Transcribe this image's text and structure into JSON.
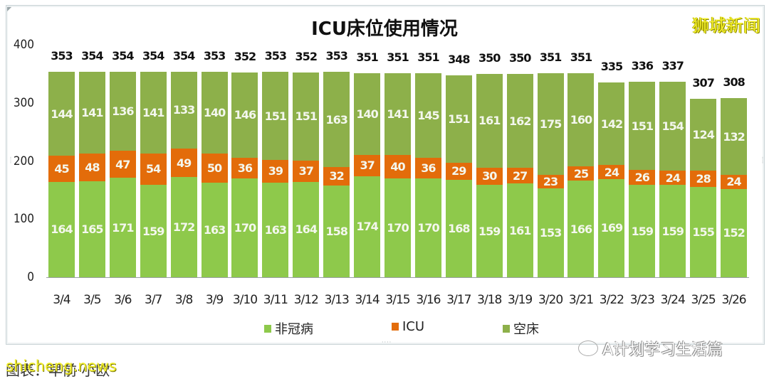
{
  "title": "ICU床位使用情况",
  "brand": "狮城新闻",
  "footer": {
    "source": "图表：早前·小欧",
    "watermark": "shicheng.news",
    "wechat_account": "A计划学习生活篇"
  },
  "legend": [
    {
      "label": "非冠病",
      "color": "#8ec94b"
    },
    {
      "label": "ICU",
      "color": "#e36c0a"
    },
    {
      "label": "空床",
      "color": "#8db04a"
    }
  ],
  "yaxis": {
    "ticks": [
      "400",
      "300",
      "200",
      "100",
      "0"
    ]
  },
  "colors": {
    "non_covid": "#8ec94b",
    "icu": "#e36c0a",
    "empty": "#8db04a"
  },
  "chart_data": {
    "type": "bar",
    "stacked": true,
    "title": "ICU床位使用情况",
    "xlabel": "",
    "ylabel": "",
    "ylim": [
      0,
      400
    ],
    "yticks": [
      0,
      100,
      200,
      300,
      400
    ],
    "grid": false,
    "legend_position": "bottom",
    "categories": [
      "3/4",
      "3/5",
      "3/6",
      "3/7",
      "3/8",
      "3/9",
      "3/10",
      "3/11",
      "3/12",
      "3/13",
      "3/14",
      "3/15",
      "3/16",
      "3/17",
      "3/18",
      "3/19",
      "3/20",
      "3/21",
      "3/22",
      "3/23",
      "3/24",
      "3/25",
      "3/26"
    ],
    "series": [
      {
        "name": "非冠病",
        "color": "#8ec94b",
        "values": [
          164,
          165,
          171,
          159,
          172,
          163,
          170,
          163,
          164,
          158,
          174,
          170,
          170,
          168,
          159,
          161,
          153,
          166,
          169,
          159,
          159,
          155,
          152
        ]
      },
      {
        "name": "ICU",
        "color": "#e36c0a",
        "values": [
          45,
          48,
          47,
          54,
          49,
          50,
          36,
          39,
          37,
          32,
          37,
          40,
          36,
          29,
          30,
          27,
          23,
          25,
          24,
          26,
          24,
          28,
          24
        ]
      },
      {
        "name": "空床",
        "color": "#8db04a",
        "values": [
          144,
          141,
          136,
          141,
          133,
          140,
          146,
          151,
          151,
          163,
          140,
          141,
          145,
          151,
          161,
          162,
          175,
          160,
          142,
          151,
          154,
          124,
          132
        ]
      }
    ],
    "totals": [
      353,
      354,
      354,
      354,
      354,
      353,
      352,
      353,
      352,
      353,
      351,
      351,
      351,
      348,
      350,
      350,
      351,
      351,
      335,
      336,
      337,
      307,
      308
    ]
  }
}
